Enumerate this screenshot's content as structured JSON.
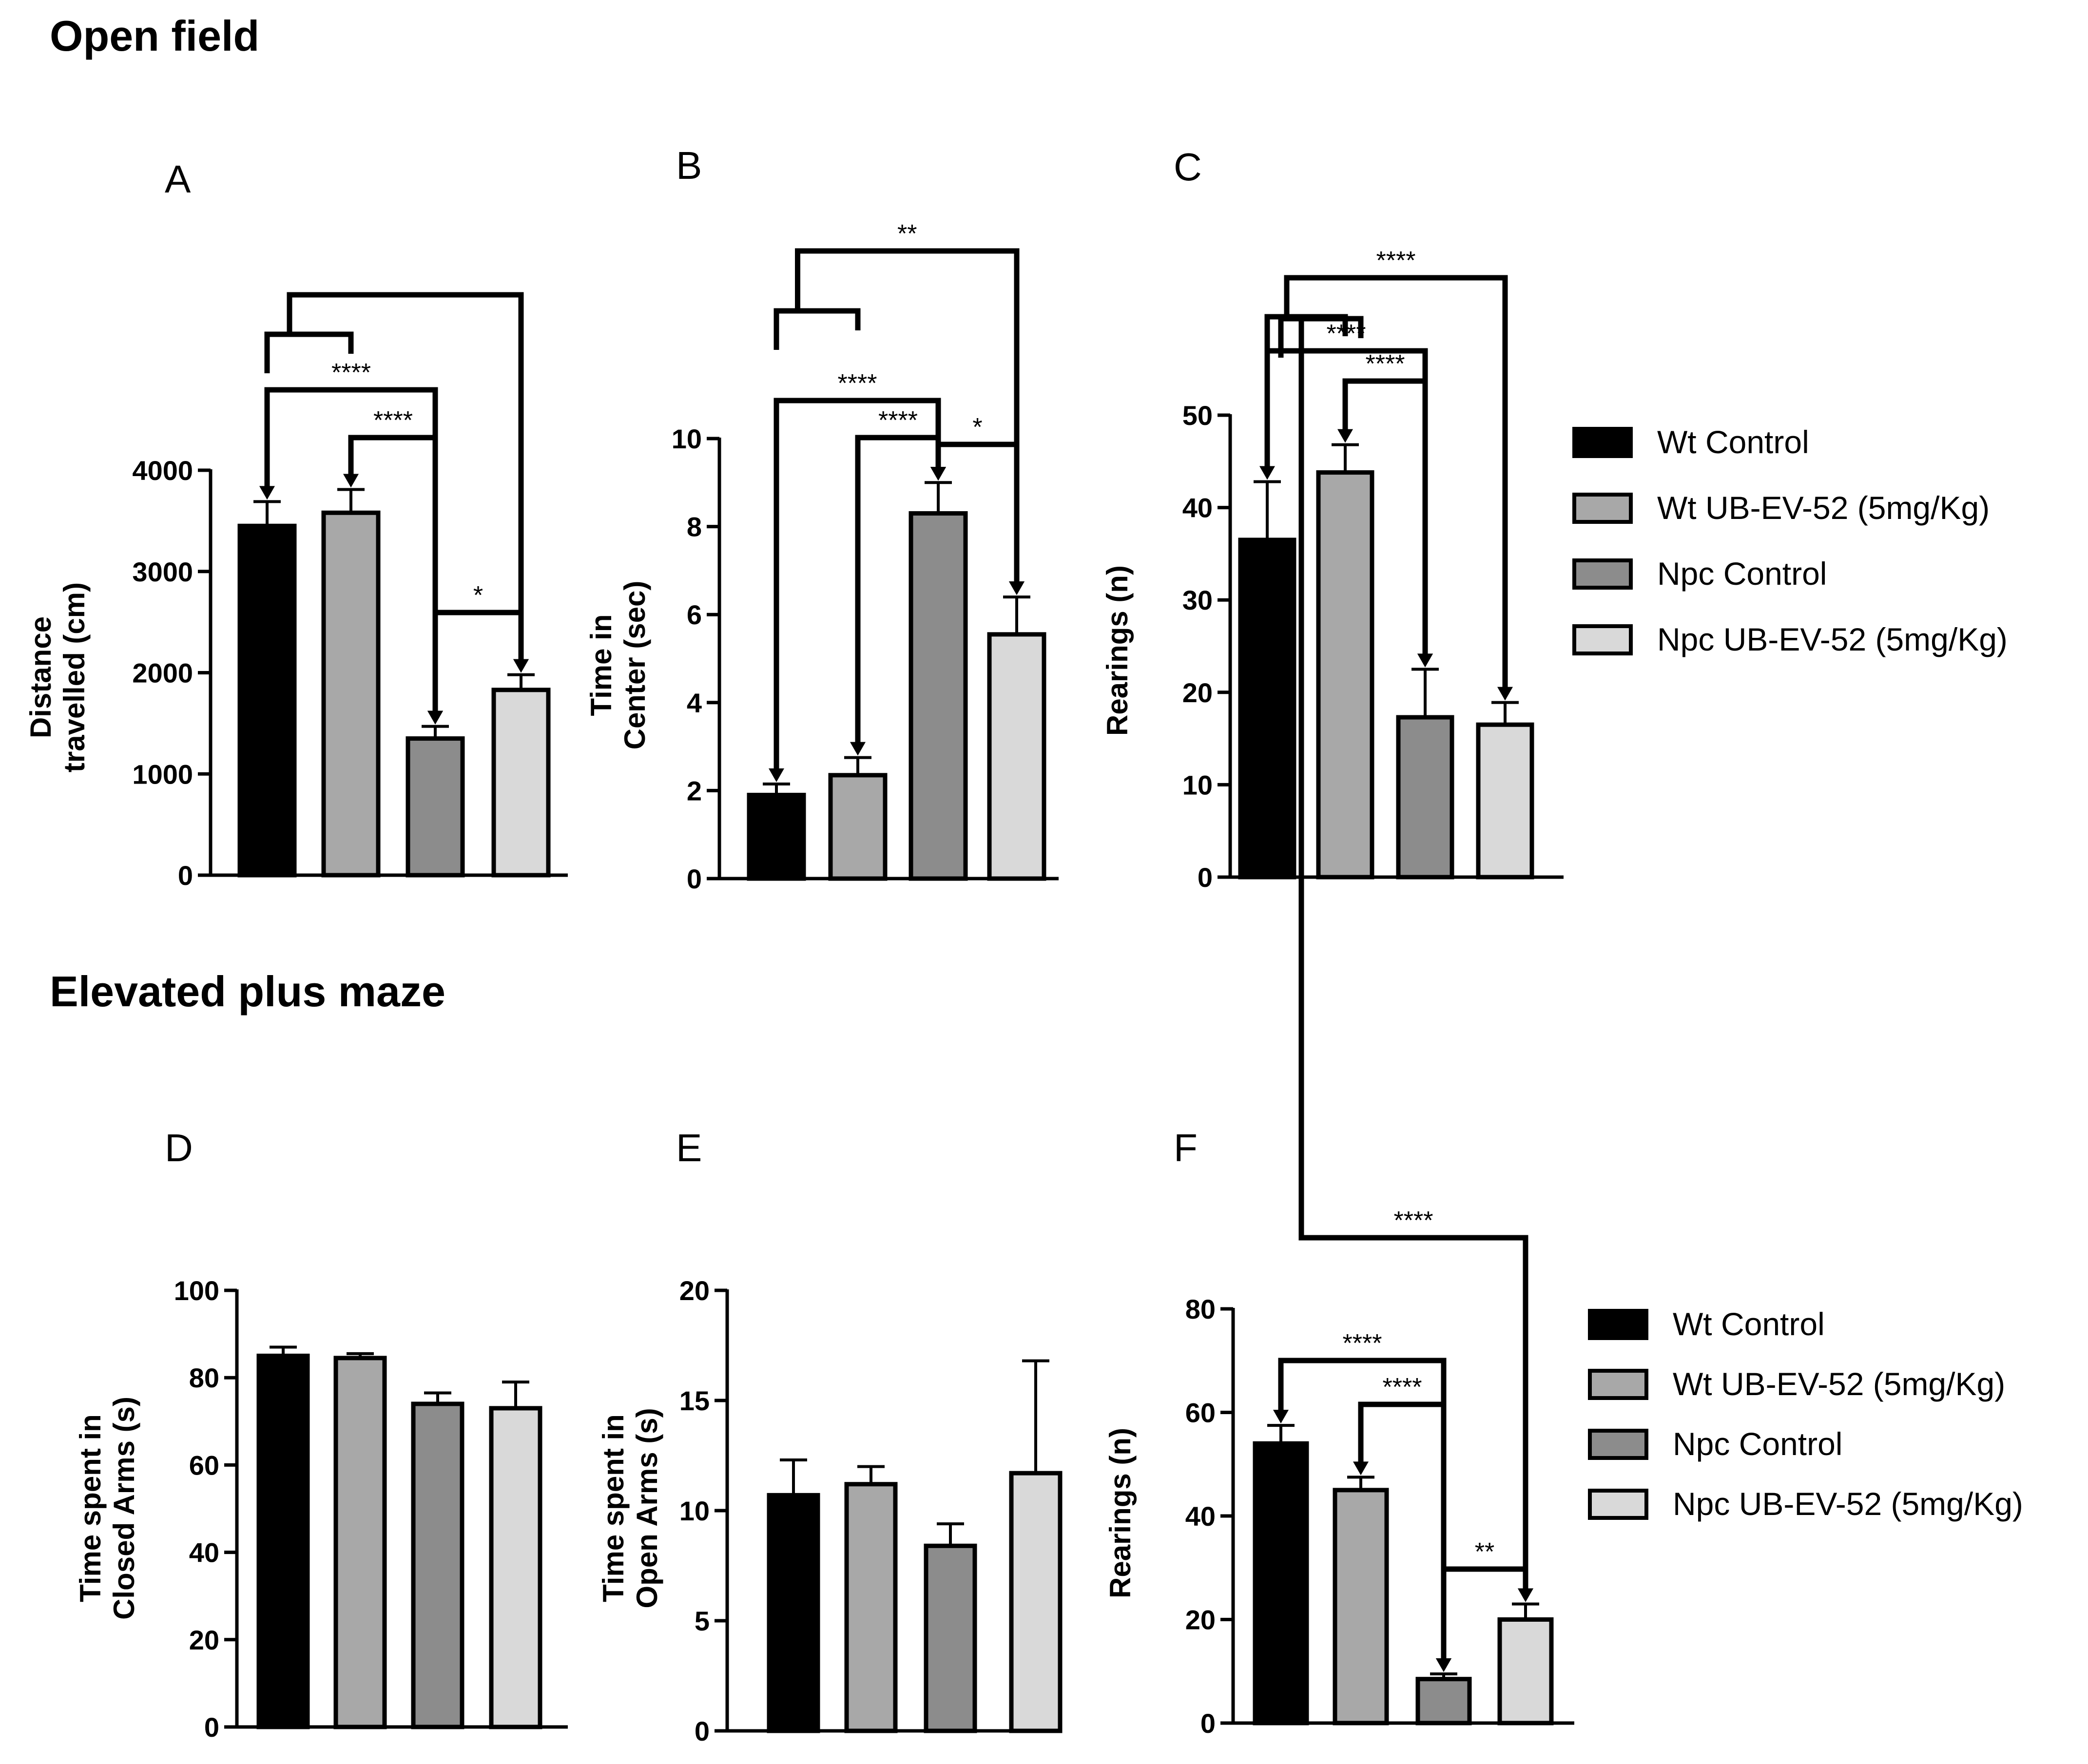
{
  "sections": [
    {
      "title": "Open field"
    },
    {
      "title": "Elevated plus maze"
    }
  ],
  "legend": {
    "entries": [
      "Wt Control",
      "Wt UB-EV-52 (5mg/Kg)",
      "Npc Control",
      "Npc UB-EV-52 (5mg/Kg)"
    ]
  },
  "colors": {
    "Wt Control": "#000000",
    "Wt UB-EV-52 (5mg/Kg)": "#a8a8a8",
    "Npc Control": "#8c8c8c",
    "Npc UB-EV-52 (5mg/Kg)": "#d9d9d9",
    "outline": "#000000"
  },
  "chart_data": [
    {
      "panel": "A",
      "type": "bar",
      "section": "Open field",
      "ylabel": [
        "Distance",
        "travelled (cm)"
      ],
      "categories": [
        "Wt Control",
        "Wt UB-EV-52 (5mg/Kg)",
        "Npc Control",
        "Npc UB-EV-52 (5mg/Kg)"
      ],
      "values": [
        3450,
        3580,
        1350,
        1830
      ],
      "errors": [
        240,
        230,
        120,
        150
      ],
      "ylim": [
        0,
        4000
      ],
      "yticks": [
        "0",
        "1000",
        "2000",
        "3000",
        "4000"
      ],
      "significance": [
        {
          "groups": [
            1,
            3
          ],
          "label": "****"
        },
        {
          "groups": [
            2,
            3
          ],
          "label": "****"
        },
        {
          "groups": [
            3,
            4
          ],
          "label": "*"
        },
        {
          "groups": [
            [
              1,
              2
            ],
            4
          ],
          "label": ""
        }
      ]
    },
    {
      "panel": "B",
      "type": "bar",
      "section": "Open field",
      "ylabel": [
        "Time in",
        "Center (sec)"
      ],
      "categories": [
        "Wt Control",
        "Wt UB-EV-52 (5mg/Kg)",
        "Npc Control",
        "Npc UB-EV-52 (5mg/Kg)"
      ],
      "values": [
        1.9,
        2.35,
        8.3,
        5.55
      ],
      "errors": [
        0.25,
        0.4,
        0.7,
        0.85
      ],
      "ylim": [
        0,
        10
      ],
      "yticks": [
        "0",
        "2",
        "4",
        "6",
        "8",
        "10"
      ],
      "significance": [
        {
          "groups": [
            1,
            3
          ],
          "label": "****"
        },
        {
          "groups": [
            2,
            3
          ],
          "label": "****"
        },
        {
          "groups": [
            3,
            4
          ],
          "label": "*"
        },
        {
          "groups": [
            [
              1,
              2
            ],
            4
          ],
          "label": "**"
        }
      ]
    },
    {
      "panel": "C",
      "type": "bar",
      "section": "Open field",
      "ylabel": [
        "Rearings (n)"
      ],
      "categories": [
        "Wt Control",
        "Wt UB-EV-52 (5mg/Kg)",
        "Npc Control",
        "Npc UB-EV-52 (5mg/Kg)"
      ],
      "values": [
        36.5,
        43.8,
        17.3,
        16.5
      ],
      "errors": [
        6.3,
        3,
        5.2,
        2.4
      ],
      "ylim": [
        0,
        50
      ],
      "yticks": [
        "0",
        "10",
        "20",
        "30",
        "40",
        "50"
      ],
      "significance": [
        {
          "groups": [
            1,
            3
          ],
          "label": "****"
        },
        {
          "groups": [
            2,
            3
          ],
          "label": "****"
        },
        {
          "groups": [
            [
              1,
              2
            ],
            4
          ],
          "label": "****"
        }
      ]
    },
    {
      "panel": "D",
      "type": "bar",
      "section": "Elevated plus maze",
      "ylabel": [
        "Time spent in",
        "Closed Arms (s)"
      ],
      "categories": [
        "Wt Control",
        "Wt UB-EV-52 (5mg/Kg)",
        "Npc Control",
        "Npc UB-EV-52 (5mg/Kg)"
      ],
      "values": [
        85,
        84.5,
        74,
        73
      ],
      "errors": [
        2,
        1,
        2.5,
        6
      ],
      "ylim": [
        0,
        100
      ],
      "yticks": [
        "0",
        "20",
        "40",
        "60",
        "80",
        "100"
      ],
      "significance": []
    },
    {
      "panel": "E",
      "type": "bar",
      "section": "Elevated plus maze",
      "ylabel": [
        "Time spent in",
        "Open Arms (s)"
      ],
      "categories": [
        "Wt Control",
        "Wt UB-EV-52 (5mg/Kg)",
        "Npc Control",
        "Npc UB-EV-52 (5mg/Kg)"
      ],
      "values": [
        10.7,
        11.2,
        8.4,
        11.7
      ],
      "errors": [
        1.6,
        0.8,
        1,
        5.1
      ],
      "ylim": [
        0,
        20
      ],
      "yticks": [
        "0",
        "5",
        "10",
        "15",
        "20"
      ],
      "significance": []
    },
    {
      "panel": "F",
      "type": "bar",
      "section": "Elevated plus maze",
      "ylabel": [
        "Rearings (n)"
      ],
      "categories": [
        "Wt Control",
        "Wt UB-EV-52 (5mg/Kg)",
        "Npc Control",
        "Npc UB-EV-52 (5mg/Kg)"
      ],
      "values": [
        54,
        45,
        8.5,
        20
      ],
      "errors": [
        3.5,
        2.5,
        1,
        3
      ],
      "ylim": [
        0,
        80
      ],
      "yticks": [
        "0",
        "20",
        "40",
        "60",
        "80"
      ],
      "significance": [
        {
          "groups": [
            1,
            3
          ],
          "label": "****"
        },
        {
          "groups": [
            2,
            3
          ],
          "label": "****"
        },
        {
          "groups": [
            3,
            4
          ],
          "label": "**"
        },
        {
          "groups": [
            [
              1,
              2
            ],
            4
          ],
          "label": "****"
        }
      ]
    }
  ]
}
